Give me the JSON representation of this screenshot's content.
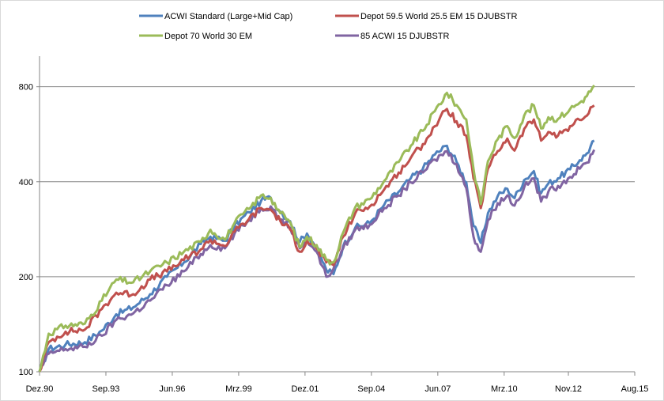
{
  "chart_data": {
    "type": "line",
    "title": "",
    "xlabel": "",
    "ylabel": "",
    "y_scale": "log",
    "ylim": [
      100,
      1000
    ],
    "xlim": [
      1990.92,
      2015.58
    ],
    "grid": true,
    "legend_position": "top",
    "y_ticks": [
      {
        "value": 100,
        "label": "100"
      },
      {
        "value": 200,
        "label": "200"
      },
      {
        "value": 400,
        "label": "400"
      },
      {
        "value": 800,
        "label": "800"
      }
    ],
    "x_ticks": [
      {
        "value": 1990.92,
        "label": "Dez.90"
      },
      {
        "value": 1993.67,
        "label": "Sep.93"
      },
      {
        "value": 1996.42,
        "label": "Jun.96"
      },
      {
        "value": 1999.17,
        "label": "Mrz.99"
      },
      {
        "value": 2001.92,
        "label": "Dez.01"
      },
      {
        "value": 2004.67,
        "label": "Sep.04"
      },
      {
        "value": 2007.42,
        "label": "Jun.07"
      },
      {
        "value": 2010.17,
        "label": "Mrz.10"
      },
      {
        "value": 2012.83,
        "label": "Nov.12"
      },
      {
        "value": 2015.58,
        "label": "Aug.15"
      }
    ],
    "series": [
      {
        "name": "ACWI Standard (Large+Mid Cap)",
        "color": "#4f81bd",
        "points": [
          [
            1990.92,
            100
          ],
          [
            1991.3,
            118
          ],
          [
            1992.0,
            122
          ],
          [
            1992.8,
            124
          ],
          [
            1993.5,
            135
          ],
          [
            1994.1,
            152
          ],
          [
            1994.8,
            160
          ],
          [
            1995.5,
            176
          ],
          [
            1996.2,
            200
          ],
          [
            1996.9,
            222
          ],
          [
            1997.6,
            254
          ],
          [
            1998.0,
            268
          ],
          [
            1998.6,
            260
          ],
          [
            1999.0,
            290
          ],
          [
            1999.6,
            320
          ],
          [
            2000.1,
            348
          ],
          [
            2000.5,
            356
          ],
          [
            2000.9,
            322
          ],
          [
            2001.3,
            300
          ],
          [
            2001.7,
            258
          ],
          [
            2002.0,
            274
          ],
          [
            2002.4,
            248
          ],
          [
            2002.8,
            210
          ],
          [
            2003.1,
            204
          ],
          [
            2003.5,
            250
          ],
          [
            2004.0,
            286
          ],
          [
            2004.6,
            296
          ],
          [
            2005.2,
            338
          ],
          [
            2005.8,
            372
          ],
          [
            2006.3,
            410
          ],
          [
            2006.8,
            440
          ],
          [
            2007.3,
            488
          ],
          [
            2007.8,
            520
          ],
          [
            2008.2,
            462
          ],
          [
            2008.6,
            398
          ],
          [
            2008.9,
            290
          ],
          [
            2009.2,
            256
          ],
          [
            2009.5,
            318
          ],
          [
            2009.9,
            360
          ],
          [
            2010.3,
            380
          ],
          [
            2010.6,
            355
          ],
          [
            2011.0,
            405
          ],
          [
            2011.4,
            432
          ],
          [
            2011.7,
            368
          ],
          [
            2012.0,
            395
          ],
          [
            2012.4,
            410
          ],
          [
            2012.9,
            438
          ],
          [
            2013.3,
            468
          ],
          [
            2013.6,
            492
          ],
          [
            2013.9,
            540
          ]
        ]
      },
      {
        "name": "Depot 59.5 World 25.5 EM 15 DJUBSTR",
        "color": "#c0504d",
        "points": [
          [
            1990.92,
            100
          ],
          [
            1991.3,
            124
          ],
          [
            1992.0,
            134
          ],
          [
            1992.8,
            136
          ],
          [
            1993.5,
            158
          ],
          [
            1994.1,
            178
          ],
          [
            1994.8,
            176
          ],
          [
            1995.5,
            196
          ],
          [
            1996.2,
            208
          ],
          [
            1996.9,
            226
          ],
          [
            1997.6,
            244
          ],
          [
            1998.0,
            262
          ],
          [
            1998.6,
            250
          ],
          [
            1999.0,
            278
          ],
          [
            1999.6,
            305
          ],
          [
            2000.1,
            330
          ],
          [
            2000.5,
            326
          ],
          [
            2000.9,
            300
          ],
          [
            2001.3,
            282
          ],
          [
            2001.7,
            240
          ],
          [
            2002.0,
            260
          ],
          [
            2002.4,
            246
          ],
          [
            2002.8,
            222
          ],
          [
            2003.1,
            218
          ],
          [
            2003.5,
            268
          ],
          [
            2004.0,
            318
          ],
          [
            2004.6,
            334
          ],
          [
            2005.2,
            378
          ],
          [
            2005.8,
            428
          ],
          [
            2006.3,
            476
          ],
          [
            2006.8,
            526
          ],
          [
            2007.3,
            600
          ],
          [
            2007.8,
            680
          ],
          [
            2008.2,
            622
          ],
          [
            2008.6,
            560
          ],
          [
            2008.9,
            410
          ],
          [
            2009.2,
            330
          ],
          [
            2009.5,
            440
          ],
          [
            2009.9,
            500
          ],
          [
            2010.3,
            548
          ],
          [
            2010.6,
            502
          ],
          [
            2011.0,
            588
          ],
          [
            2011.4,
            630
          ],
          [
            2011.7,
            540
          ],
          [
            2012.0,
            575
          ],
          [
            2012.4,
            560
          ],
          [
            2012.9,
            600
          ],
          [
            2013.3,
            628
          ],
          [
            2013.6,
            648
          ],
          [
            2013.9,
            698
          ]
        ]
      },
      {
        "name": "Depot 70 World 30 EM",
        "color": "#9bbb59",
        "points": [
          [
            1990.92,
            100
          ],
          [
            1991.3,
            132
          ],
          [
            1992.0,
            140
          ],
          [
            1992.8,
            142
          ],
          [
            1993.5,
            168
          ],
          [
            1994.1,
            196
          ],
          [
            1994.8,
            192
          ],
          [
            1995.5,
            208
          ],
          [
            1996.2,
            222
          ],
          [
            1996.9,
            240
          ],
          [
            1997.6,
            258
          ],
          [
            1998.0,
            282
          ],
          [
            1998.6,
            262
          ],
          [
            1999.0,
            296
          ],
          [
            1999.6,
            328
          ],
          [
            2000.1,
            362
          ],
          [
            2000.5,
            356
          ],
          [
            2000.9,
            318
          ],
          [
            2001.3,
            298
          ],
          [
            2001.7,
            248
          ],
          [
            2002.0,
            268
          ],
          [
            2002.4,
            252
          ],
          [
            2002.8,
            226
          ],
          [
            2003.1,
            222
          ],
          [
            2003.5,
            276
          ],
          [
            2004.0,
            332
          ],
          [
            2004.6,
            352
          ],
          [
            2005.2,
            402
          ],
          [
            2005.8,
            462
          ],
          [
            2006.3,
            520
          ],
          [
            2006.8,
            580
          ],
          [
            2007.3,
            670
          ],
          [
            2007.8,
            765
          ],
          [
            2008.2,
            700
          ],
          [
            2008.6,
            630
          ],
          [
            2008.9,
            440
          ],
          [
            2009.2,
            340
          ],
          [
            2009.5,
            465
          ],
          [
            2009.9,
            545
          ],
          [
            2010.3,
            600
          ],
          [
            2010.6,
            550
          ],
          [
            2011.0,
            648
          ],
          [
            2011.4,
            698
          ],
          [
            2011.7,
            590
          ],
          [
            2012.0,
            640
          ],
          [
            2012.4,
            632
          ],
          [
            2012.9,
            680
          ],
          [
            2013.3,
            712
          ],
          [
            2013.6,
            748
          ],
          [
            2013.9,
            808
          ]
        ]
      },
      {
        "name": "85 ACWI 15 DJUBSTR",
        "color": "#8064a2",
        "points": [
          [
            1990.92,
            100
          ],
          [
            1991.3,
            114
          ],
          [
            1992.0,
            118
          ],
          [
            1992.8,
            120
          ],
          [
            1993.5,
            130
          ],
          [
            1994.1,
            146
          ],
          [
            1994.8,
            153
          ],
          [
            1995.5,
            168
          ],
          [
            1996.2,
            188
          ],
          [
            1996.9,
            208
          ],
          [
            1997.6,
            236
          ],
          [
            1998.0,
            252
          ],
          [
            1998.6,
            246
          ],
          [
            1999.0,
            274
          ],
          [
            1999.6,
            302
          ],
          [
            2000.1,
            330
          ],
          [
            2000.5,
            334
          ],
          [
            2000.9,
            304
          ],
          [
            2001.3,
            286
          ],
          [
            2001.7,
            246
          ],
          [
            2002.0,
            262
          ],
          [
            2002.4,
            240
          ],
          [
            2002.8,
            200
          ],
          [
            2003.1,
            212
          ],
          [
            2003.5,
            246
          ],
          [
            2004.0,
            282
          ],
          [
            2004.6,
            292
          ],
          [
            2005.2,
            330
          ],
          [
            2005.8,
            362
          ],
          [
            2006.3,
            398
          ],
          [
            2006.8,
            428
          ],
          [
            2007.3,
            470
          ],
          [
            2007.8,
            500
          ],
          [
            2008.2,
            455
          ],
          [
            2008.6,
            382
          ],
          [
            2008.9,
            268
          ],
          [
            2009.2,
            240
          ],
          [
            2009.5,
            302
          ],
          [
            2009.9,
            342
          ],
          [
            2010.3,
            362
          ],
          [
            2010.6,
            336
          ],
          [
            2011.0,
            384
          ],
          [
            2011.4,
            410
          ],
          [
            2011.7,
            346
          ],
          [
            2012.0,
            372
          ],
          [
            2012.4,
            388
          ],
          [
            2012.9,
            414
          ],
          [
            2013.3,
            440
          ],
          [
            2013.6,
            460
          ],
          [
            2013.9,
            505
          ]
        ]
      }
    ]
  }
}
